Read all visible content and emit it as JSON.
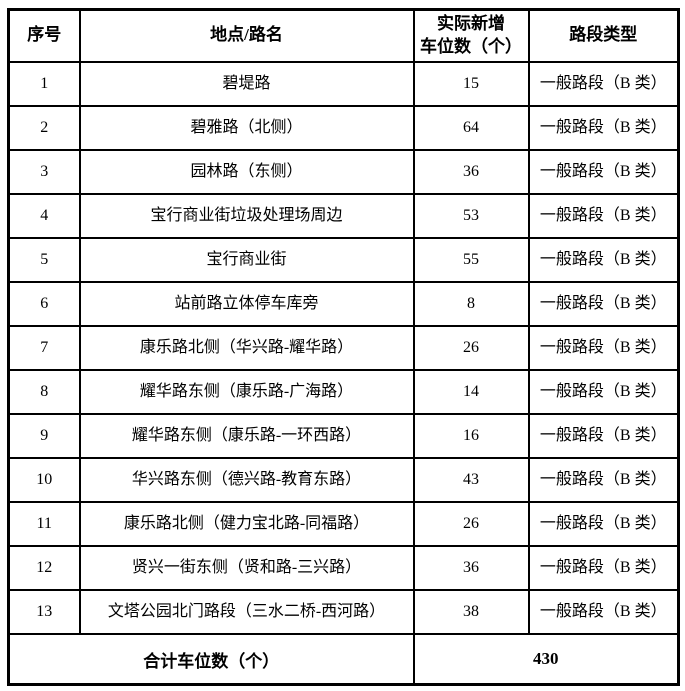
{
  "table": {
    "headers": {
      "no": "序号",
      "location": "地点/路名",
      "spaces": "实际新增\n车位数（个）",
      "type": "路段类型"
    },
    "road_type_common": "一般路段（B 类）",
    "rows": [
      {
        "no": "1",
        "location": "碧堤路",
        "spaces": "15",
        "type": "一般路段（B 类）"
      },
      {
        "no": "2",
        "location": "碧雅路（北侧）",
        "spaces": "64",
        "type": "一般路段（B 类）"
      },
      {
        "no": "3",
        "location": "园林路（东侧）",
        "spaces": "36",
        "type": "一般路段（B 类）"
      },
      {
        "no": "4",
        "location": "宝行商业街垃圾处理场周边",
        "spaces": "53",
        "type": "一般路段（B 类）"
      },
      {
        "no": "5",
        "location": "宝行商业街",
        "spaces": "55",
        "type": "一般路段（B 类）"
      },
      {
        "no": "6",
        "location": "站前路立体停车库旁",
        "spaces": "8",
        "type": "一般路段（B 类）"
      },
      {
        "no": "7",
        "location": "康乐路北侧（华兴路-耀华路）",
        "spaces": "26",
        "type": "一般路段（B 类）"
      },
      {
        "no": "8",
        "location": "耀华路东侧（康乐路-广海路）",
        "spaces": "14",
        "type": "一般路段（B 类）"
      },
      {
        "no": "9",
        "location": "耀华路东侧（康乐路-一环西路）",
        "spaces": "16",
        "type": "一般路段（B 类）"
      },
      {
        "no": "10",
        "location": "华兴路东侧（德兴路-教育东路）",
        "spaces": "43",
        "type": "一般路段（B 类）"
      },
      {
        "no": "11",
        "location": "康乐路北侧（健力宝北路-同福路）",
        "spaces": "26",
        "type": "一般路段（B 类）"
      },
      {
        "no": "12",
        "location": "贤兴一街东侧（贤和路-三兴路）",
        "spaces": "36",
        "type": "一般路段（B 类）"
      },
      {
        "no": "13",
        "location": "文塔公园北门路段（三水二桥-西河路）",
        "spaces": "38",
        "type": "一般路段（B 类）"
      }
    ],
    "total": {
      "label": "合计车位数（个）",
      "value": "430"
    }
  }
}
